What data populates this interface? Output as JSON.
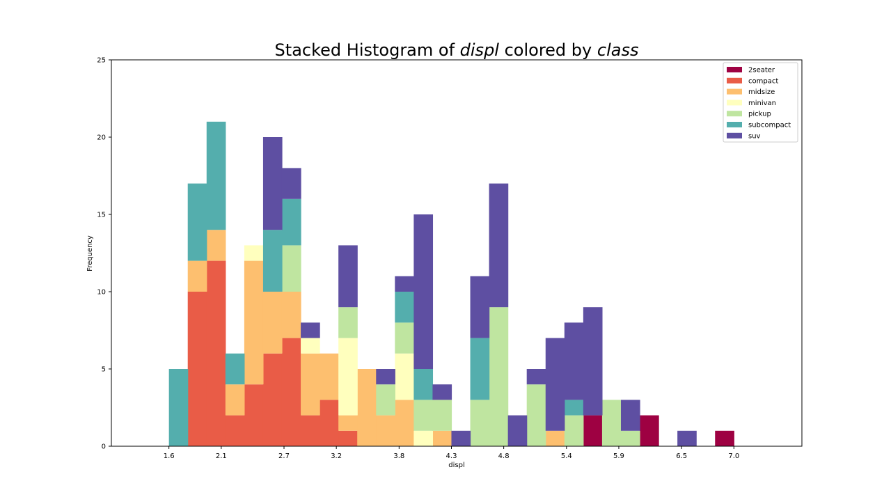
{
  "chart_data": {
    "type": "bar",
    "stacked": true,
    "title_parts": [
      {
        "text": "Stacked Histogram of ",
        "italic": false
      },
      {
        "text": "displ",
        "italic": true
      },
      {
        "text": " colored by ",
        "italic": false
      },
      {
        "text": "class",
        "italic": true
      }
    ],
    "xlabel": "displ",
    "ylabel": "Frequency",
    "xlim": [
      1.05,
      7.65
    ],
    "ylim": [
      0,
      25
    ],
    "xticks": [
      1.6,
      2.1,
      2.7,
      3.2,
      3.8,
      4.3,
      4.8,
      5.4,
      5.9,
      6.5,
      7.0
    ],
    "xtick_labels": [
      "1.6",
      "2.1",
      "2.7",
      "3.2",
      "3.8",
      "4.3",
      "4.8",
      "5.4",
      "5.9",
      "6.5",
      "7.0"
    ],
    "yticks": [
      0,
      5,
      10,
      15,
      20,
      25
    ],
    "ytick_labels": [
      "0",
      "5",
      "10",
      "15",
      "20",
      "25"
    ],
    "bin_edges": [
      1.6,
      1.78,
      1.96,
      2.14,
      2.32,
      2.5,
      2.68,
      2.86,
      3.04,
      3.22,
      3.4,
      3.58,
      3.76,
      3.94,
      4.12,
      4.3,
      4.48,
      4.66,
      4.84,
      5.02,
      5.2,
      5.38,
      5.56,
      5.74,
      5.92,
      6.1,
      6.28,
      6.46,
      6.64,
      6.82,
      7.0
    ],
    "series": [
      {
        "name": "2seater",
        "color": "#9e0142",
        "values": [
          0,
          0,
          0,
          0,
          0,
          0,
          0,
          0,
          0,
          0,
          0,
          0,
          0,
          0,
          0,
          0,
          0,
          0,
          0,
          0,
          0,
          0,
          2,
          0,
          0,
          2,
          0,
          0,
          0,
          1
        ]
      },
      {
        "name": "compact",
        "color": "#e95c47",
        "values": [
          0,
          10,
          12,
          2,
          4,
          6,
          7,
          2,
          3,
          1,
          0,
          0,
          0,
          0,
          0,
          0,
          0,
          0,
          0,
          0,
          0,
          0,
          0,
          0,
          0,
          0,
          0,
          0,
          0,
          0
        ]
      },
      {
        "name": "midsize",
        "color": "#fdbf6f",
        "values": [
          0,
          2,
          2,
          2,
          8,
          4,
          3,
          4,
          3,
          1,
          5,
          2,
          3,
          0,
          1,
          0,
          0,
          0,
          0,
          0,
          1,
          0,
          0,
          0,
          0,
          0,
          0,
          0,
          0,
          0
        ]
      },
      {
        "name": "minivan",
        "color": "#ffffbe",
        "values": [
          0,
          0,
          0,
          0,
          1,
          0,
          0,
          1,
          0,
          5,
          0,
          0,
          3,
          1,
          0,
          0,
          0,
          0,
          0,
          0,
          0,
          0,
          0,
          0,
          0,
          0,
          0,
          0,
          0,
          0
        ]
      },
      {
        "name": "pickup",
        "color": "#bfe5a0",
        "values": [
          0,
          0,
          0,
          0,
          0,
          0,
          3,
          0,
          0,
          2,
          0,
          2,
          2,
          2,
          2,
          0,
          3,
          9,
          0,
          4,
          0,
          2,
          0,
          3,
          1,
          0,
          0,
          0,
          0,
          0
        ]
      },
      {
        "name": "subcompact",
        "color": "#54aead",
        "values": [
          5,
          5,
          7,
          2,
          0,
          4,
          3,
          0,
          0,
          0,
          0,
          0,
          2,
          2,
          0,
          0,
          4,
          0,
          0,
          0,
          0,
          1,
          0,
          0,
          0,
          0,
          0,
          0,
          0,
          0
        ]
      },
      {
        "name": "suv",
        "color": "#5e4fa2",
        "values": [
          0,
          0,
          0,
          0,
          0,
          6,
          2,
          1,
          0,
          4,
          0,
          1,
          1,
          10,
          1,
          1,
          4,
          8,
          2,
          1,
          6,
          5,
          7,
          0,
          2,
          0,
          0,
          1,
          0,
          0
        ]
      }
    ],
    "legend_placement": "upper-right",
    "grid": false
  }
}
